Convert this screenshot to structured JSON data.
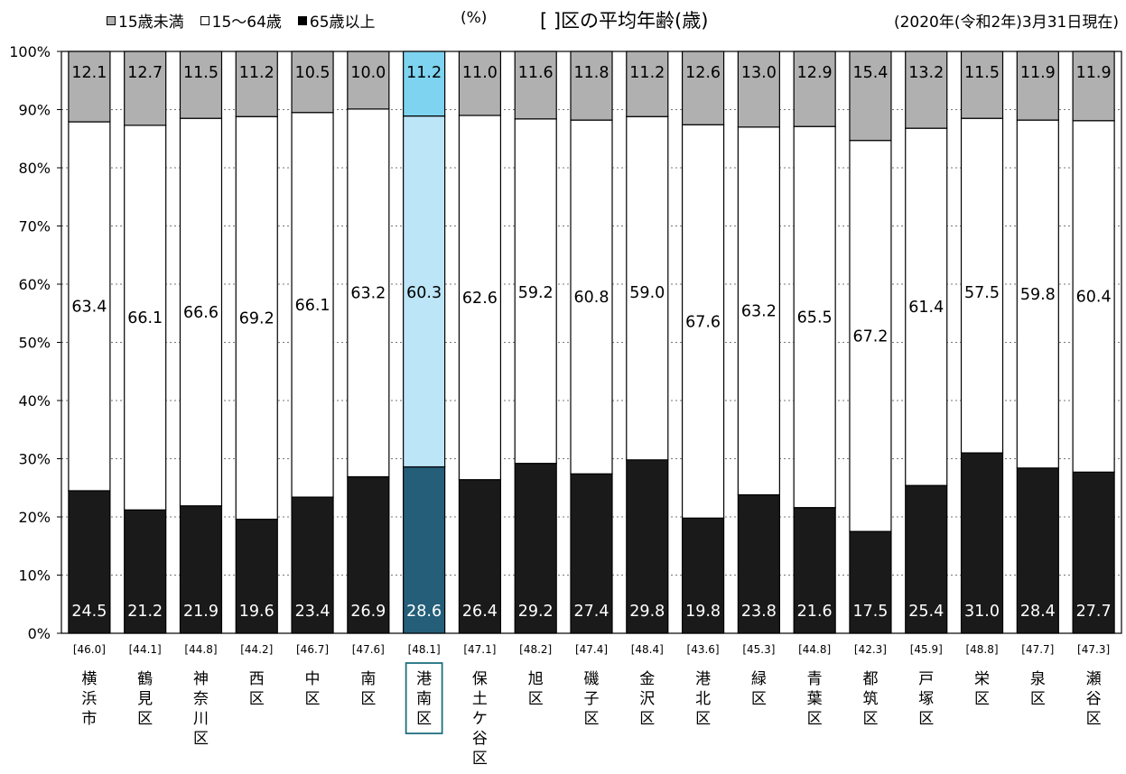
{
  "header": {
    "legend": [
      {
        "label": "15歳未満",
        "color": "#b0b0b0"
      },
      {
        "label": "15～64歳",
        "color": "#ffffff"
      },
      {
        "label": "65歳以上",
        "color": "#000000"
      }
    ],
    "unit": "(%)",
    "title": "[ ]区の平均年齢(歳)",
    "date": "(2020年(令和2年)3月31日現在)"
  },
  "colors": {
    "under15": "#b0b0b0",
    "working": "#ffffff",
    "elderly": "#1a1a1a",
    "hl_under15": "#7dd3f0",
    "hl_working": "#bde5f8",
    "hl_elderly": "#245e78",
    "hl_box": "#1f6f80"
  },
  "chart_data": {
    "type": "bar",
    "stacked": true,
    "categories": [
      "横浜市",
      "鶴見区",
      "神奈川区",
      "西区",
      "中区",
      "南区",
      "港南区",
      "保土ケ谷区",
      "旭区",
      "磯子区",
      "金沢区",
      "港北区",
      "緑区",
      "青葉区",
      "都筑区",
      "戸塚区",
      "栄区",
      "泉区",
      "瀬谷区"
    ],
    "average_age": [
      "46.0",
      "44.1",
      "44.8",
      "44.2",
      "46.7",
      "47.6",
      "48.1",
      "47.1",
      "48.2",
      "47.4",
      "48.4",
      "43.6",
      "45.3",
      "44.8",
      "42.3",
      "45.9",
      "48.8",
      "47.7",
      "47.3"
    ],
    "series": [
      {
        "name": "65歳以上",
        "values": [
          24.5,
          21.2,
          21.9,
          19.6,
          23.4,
          26.9,
          28.6,
          26.4,
          29.2,
          27.4,
          29.8,
          19.8,
          23.8,
          21.6,
          17.5,
          25.4,
          31.0,
          28.4,
          27.7
        ]
      },
      {
        "name": "15～64歳",
        "values": [
          63.4,
          66.1,
          66.6,
          69.2,
          66.1,
          63.2,
          60.3,
          62.6,
          59.2,
          60.8,
          59.0,
          67.6,
          63.2,
          65.5,
          67.2,
          61.4,
          57.5,
          59.8,
          60.4
        ]
      },
      {
        "name": "15歳未満",
        "values": [
          12.1,
          12.7,
          11.5,
          11.2,
          10.5,
          10.0,
          11.2,
          11.0,
          11.6,
          11.8,
          11.2,
          12.6,
          13.0,
          12.9,
          15.4,
          13.2,
          11.5,
          11.9,
          11.9
        ]
      }
    ],
    "highlight": "港南区",
    "yticks": [
      "0%",
      "10%",
      "20%",
      "30%",
      "40%",
      "50%",
      "60%",
      "70%",
      "80%",
      "90%",
      "100%"
    ],
    "ylim": [
      0,
      100
    ],
    "legend_position": "top-left"
  }
}
